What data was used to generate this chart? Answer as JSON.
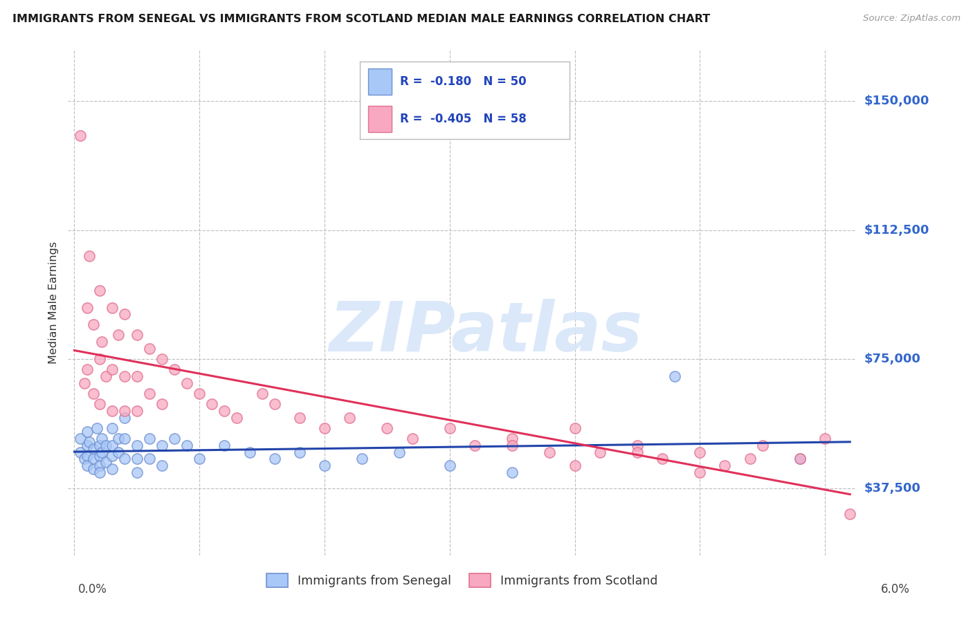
{
  "title": "IMMIGRANTS FROM SENEGAL VS IMMIGRANTS FROM SCOTLAND MEDIAN MALE EARNINGS CORRELATION CHART",
  "source": "Source: ZipAtlas.com",
  "ylabel": "Median Male Earnings",
  "yticks": [
    37500,
    75000,
    112500,
    150000
  ],
  "ytick_labels": [
    "$37,500",
    "$75,000",
    "$112,500",
    "$150,000"
  ],
  "ylim": [
    18000,
    165000
  ],
  "xlim": [
    -0.0005,
    0.0625
  ],
  "senegal_R": -0.18,
  "senegal_N": 50,
  "scotland_R": -0.405,
  "scotland_N": 58,
  "senegal_color": "#a8c8f8",
  "scotland_color": "#f8a8c0",
  "senegal_edge_color": "#7090d0",
  "scotland_edge_color": "#e07090",
  "senegal_line_color": "#2244aa",
  "scotland_line_color": "#e0305a",
  "bg_color": "#ffffff",
  "grid_color": "#c0c0c0",
  "title_color": "#1a1a1a",
  "tick_label_color": "#3366cc",
  "ylabel_color": "#333333",
  "watermark_color": "#d5e5f8",
  "source_color": "#999999",
  "legend_text_color": "#2244bb",
  "senegal_x": [
    0.0005,
    0.0005,
    0.0008,
    0.001,
    0.001,
    0.001,
    0.001,
    0.0012,
    0.0015,
    0.0015,
    0.0015,
    0.0018,
    0.002,
    0.002,
    0.002,
    0.002,
    0.0022,
    0.0022,
    0.0025,
    0.0025,
    0.003,
    0.003,
    0.003,
    0.003,
    0.0035,
    0.0035,
    0.004,
    0.004,
    0.004,
    0.005,
    0.005,
    0.005,
    0.006,
    0.006,
    0.007,
    0.007,
    0.008,
    0.009,
    0.01,
    0.012,
    0.014,
    0.016,
    0.018,
    0.02,
    0.023,
    0.026,
    0.03,
    0.035,
    0.048,
    0.058
  ],
  "senegal_y": [
    52000,
    48000,
    46000,
    50000,
    47000,
    44000,
    54000,
    51000,
    49000,
    46000,
    43000,
    55000,
    50000,
    47000,
    44000,
    42000,
    52000,
    48000,
    50000,
    45000,
    55000,
    50000,
    47000,
    43000,
    52000,
    48000,
    58000,
    52000,
    46000,
    50000,
    46000,
    42000,
    52000,
    46000,
    50000,
    44000,
    52000,
    50000,
    46000,
    50000,
    48000,
    46000,
    48000,
    44000,
    46000,
    48000,
    44000,
    42000,
    70000,
    46000
  ],
  "scotland_x": [
    0.0005,
    0.0008,
    0.001,
    0.001,
    0.0012,
    0.0015,
    0.0015,
    0.002,
    0.002,
    0.002,
    0.0022,
    0.0025,
    0.003,
    0.003,
    0.003,
    0.0035,
    0.004,
    0.004,
    0.004,
    0.005,
    0.005,
    0.005,
    0.006,
    0.006,
    0.007,
    0.007,
    0.008,
    0.009,
    0.01,
    0.011,
    0.012,
    0.013,
    0.015,
    0.016,
    0.018,
    0.02,
    0.022,
    0.025,
    0.027,
    0.03,
    0.032,
    0.035,
    0.038,
    0.04,
    0.042,
    0.045,
    0.047,
    0.05,
    0.052,
    0.054,
    0.035,
    0.04,
    0.045,
    0.05,
    0.055,
    0.058,
    0.06,
    0.062
  ],
  "scotland_y": [
    140000,
    68000,
    90000,
    72000,
    105000,
    85000,
    65000,
    95000,
    75000,
    62000,
    80000,
    70000,
    90000,
    72000,
    60000,
    82000,
    88000,
    70000,
    60000,
    82000,
    70000,
    60000,
    78000,
    65000,
    75000,
    62000,
    72000,
    68000,
    65000,
    62000,
    60000,
    58000,
    65000,
    62000,
    58000,
    55000,
    58000,
    55000,
    52000,
    55000,
    50000,
    52000,
    48000,
    55000,
    48000,
    50000,
    46000,
    48000,
    44000,
    46000,
    50000,
    44000,
    48000,
    42000,
    50000,
    46000,
    52000,
    30000
  ]
}
